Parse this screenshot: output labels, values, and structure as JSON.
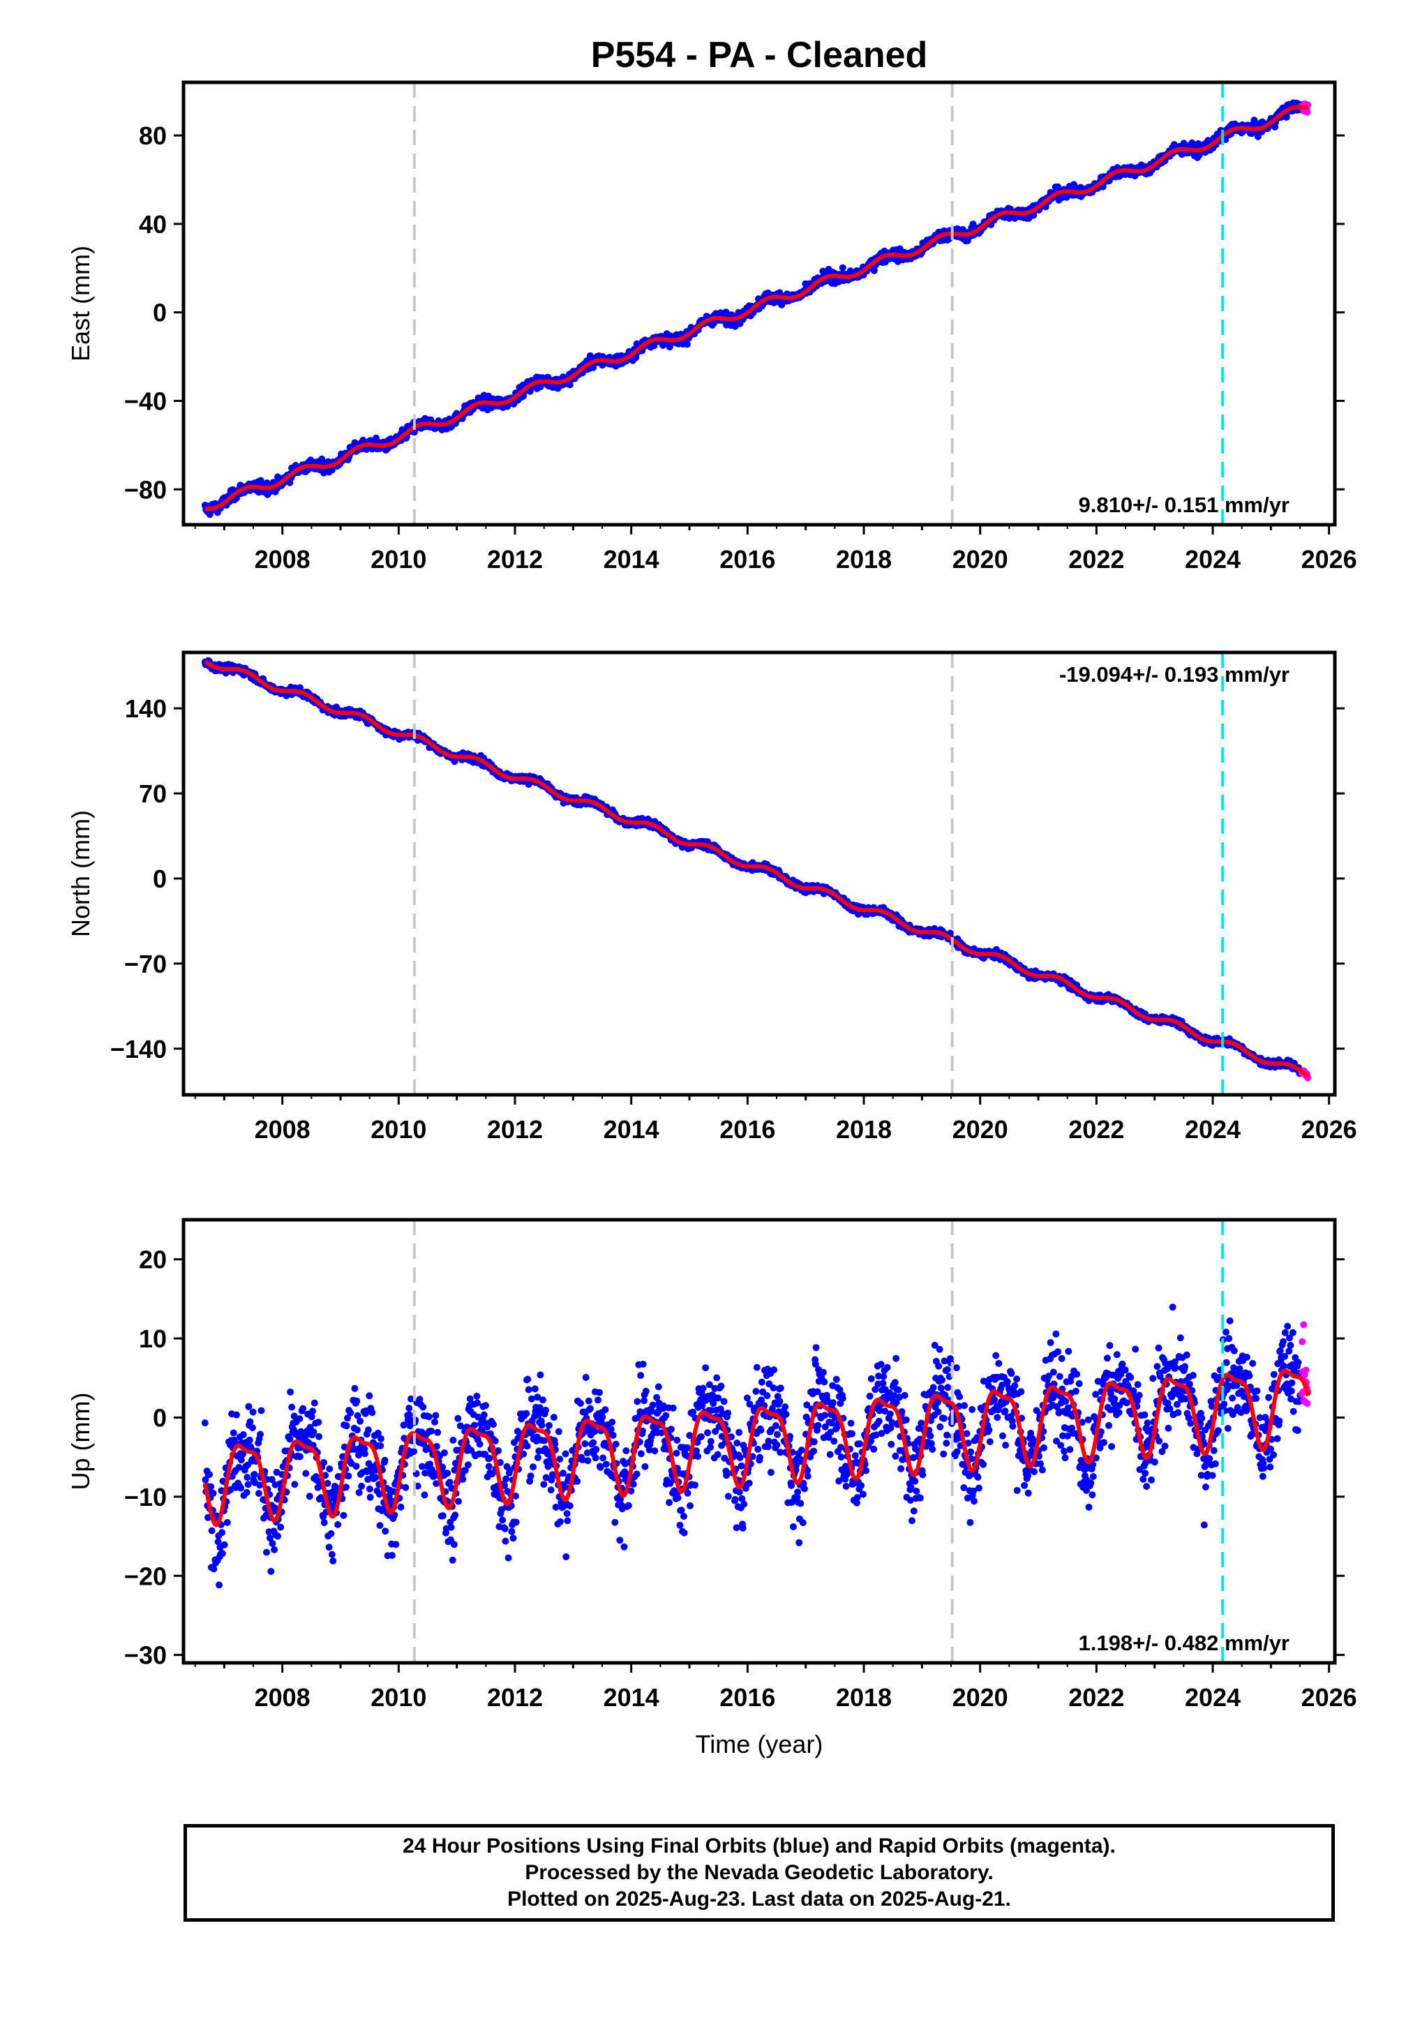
{
  "colors": {
    "final_orbits": "#0000ff",
    "rapid_orbits": "#ff00ff",
    "model_fit": "#ff0000",
    "equipment_change": "#c8c8c8",
    "earthquake": "#00e5ee"
  },
  "chart_data": {
    "type": "scatter",
    "title": "P554  - PA - Cleaned",
    "xlim": [
      2006.3,
      2026.1
    ],
    "x_ticks": [
      2008,
      2010,
      2012,
      2014,
      2016,
      2018,
      2020,
      2022,
      2024,
      2026
    ],
    "x_start": 2006.67,
    "x_end_final": 2025.52,
    "x_end_rapid": 2025.64,
    "vertical_lines": [
      {
        "x": 2010.27,
        "kind": "equipment_change"
      },
      {
        "x": 2019.52,
        "kind": "equipment_change"
      },
      {
        "x": 2024.17,
        "kind": "earthquake"
      }
    ],
    "panels": [
      {
        "id": "east",
        "ylabel": "East (mm)",
        "ylim": [
          -96,
          104
        ],
        "y_ticks": [
          80,
          40,
          0,
          -40,
          -80
        ],
        "rate": "9.810+/- 0.151 mm/yr",
        "rate_position": "bottom-right",
        "start_value": -88,
        "end_value": 93,
        "annual_amplitude": 2.0,
        "noise": 1.8
      },
      {
        "id": "north",
        "ylabel": "North (mm)",
        "ylim": [
          -178,
          186
        ],
        "y_ticks": [
          140,
          70,
          0,
          -70,
          -140
        ],
        "rate": "-19.094+/- 0.193 mm/yr",
        "rate_position": "top-right",
        "start_value": 180,
        "end_value": -162,
        "annual_amplitude": 3.0,
        "noise": 2.2
      },
      {
        "id": "up",
        "ylabel": "Up (mm)",
        "ylim": [
          -31,
          25
        ],
        "y_ticks": [
          20,
          10,
          0,
          -10,
          -20,
          -30
        ],
        "rate": "1.198+/- 0.482 mm/yr",
        "rate_position": "bottom-right",
        "start_value": -7.6,
        "end_value": 2.4,
        "annual_amplitude": 4.6,
        "noise": 4.2
      }
    ],
    "xlabel": "Time (year)",
    "series": [
      {
        "name": "Final Orbits (blue)"
      },
      {
        "name": "Rapid Orbits (magenta)"
      }
    ]
  },
  "footer": {
    "line1": "24 Hour Positions Using Final Orbits (blue) and Rapid Orbits (magenta).",
    "line2": "Processed by the Nevada Geodetic Laboratory.",
    "line3": "Plotted on 2025-Aug-23. Last data on 2025-Aug-21."
  }
}
